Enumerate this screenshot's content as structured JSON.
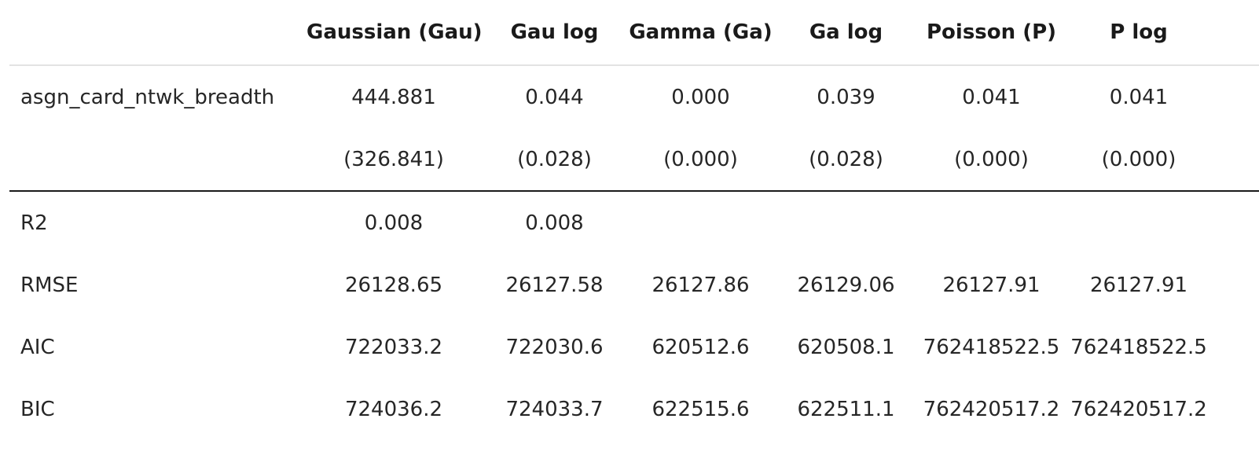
{
  "columns": [
    "",
    "Gaussian (Gau)",
    "Gau log",
    "Gamma (Ga)",
    "Ga log",
    "Poisson (P)",
    "P log"
  ],
  "rows": [
    {
      "label": "asgn_card_ntwk_breadth",
      "values": [
        "444.881",
        "0.044",
        "0.000",
        "0.039",
        "0.041",
        "0.041"
      ]
    },
    {
      "label": "",
      "values": [
        "(326.841)",
        "(0.028)",
        "(0.000)",
        "(0.028)",
        "(0.000)",
        "(0.000)"
      ]
    },
    {
      "label": "R2",
      "values": [
        "0.008",
        "0.008",
        "",
        "",
        "",
        ""
      ]
    },
    {
      "label": "RMSE",
      "values": [
        "26128.65",
        "26127.58",
        "26127.86",
        "26129.06",
        "26127.91",
        "26127.91"
      ]
    },
    {
      "label": "AIC",
      "values": [
        "722033.2",
        "722030.6",
        "620512.6",
        "620508.1",
        "762418522.5",
        "762418522.5"
      ]
    },
    {
      "label": "BIC",
      "values": [
        "724036.2",
        "724033.7",
        "622515.6",
        "622511.1",
        "762420517.2",
        "762420517.2"
      ]
    }
  ]
}
